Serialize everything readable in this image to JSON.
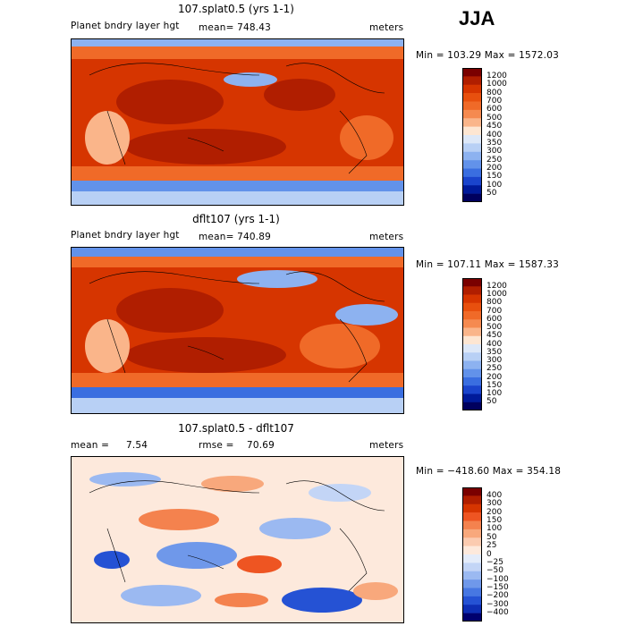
{
  "season": "JJA",
  "chart_data": [
    {
      "type": "heatmap",
      "title": "107.splat0.5 (yrs 1-1)",
      "field_label": "Planet bndry layer hgt",
      "mean_text": "mean= 748.43",
      "units": "meters",
      "minmax_text": "Min = 103.29 Max = 1572.03",
      "colorbar_levels": [
        "1200",
        "1000",
        "800",
        "700",
        "600",
        "500",
        "450",
        "400",
        "350",
        "300",
        "250",
        "200",
        "150",
        "100",
        "50"
      ]
    },
    {
      "type": "heatmap",
      "title": "dflt107 (yrs 1-1)",
      "field_label": "Planet bndry layer hgt",
      "mean_text": "mean= 740.89",
      "units": "meters",
      "minmax_text": "Min = 107.11 Max = 1587.33",
      "colorbar_levels": [
        "1200",
        "1000",
        "800",
        "700",
        "600",
        "500",
        "450",
        "400",
        "350",
        "300",
        "250",
        "200",
        "150",
        "100",
        "50"
      ]
    },
    {
      "type": "heatmap",
      "title": "107.splat0.5 - dflt107",
      "mean_label": "mean =",
      "mean_value": "7.54",
      "rmse_label": "rmse =",
      "rmse_value": "70.69",
      "units": "meters",
      "minmax_text": "Min = −418.60 Max = 354.18",
      "colorbar_levels": [
        "400",
        "300",
        "200",
        "150",
        "100",
        "50",
        "25",
        "0",
        "−25",
        "−50",
        "−100",
        "−150",
        "−200",
        "−300",
        "−400"
      ]
    }
  ],
  "colors": {
    "abs_scale": [
      "#7a0000",
      "#b01e00",
      "#d63500",
      "#e8500e",
      "#f06a28",
      "#f58a50",
      "#fab58a",
      "#fde6d2",
      "#dde8f8",
      "#b8d0f5",
      "#8db2f0",
      "#6292ea",
      "#3a6ee0",
      "#1a44cc",
      "#001a9a",
      "#00005e"
    ],
    "diff_scale": [
      "#7a0000",
      "#b01e00",
      "#d63500",
      "#ee5522",
      "#f4824e",
      "#f8a87c",
      "#fbcbb0",
      "#fde9dc",
      "#e4ecfa",
      "#c3d5f6",
      "#9bb9f1",
      "#6f98ea",
      "#4777e2",
      "#2552d4",
      "#0e2eb4",
      "#00006e"
    ]
  }
}
